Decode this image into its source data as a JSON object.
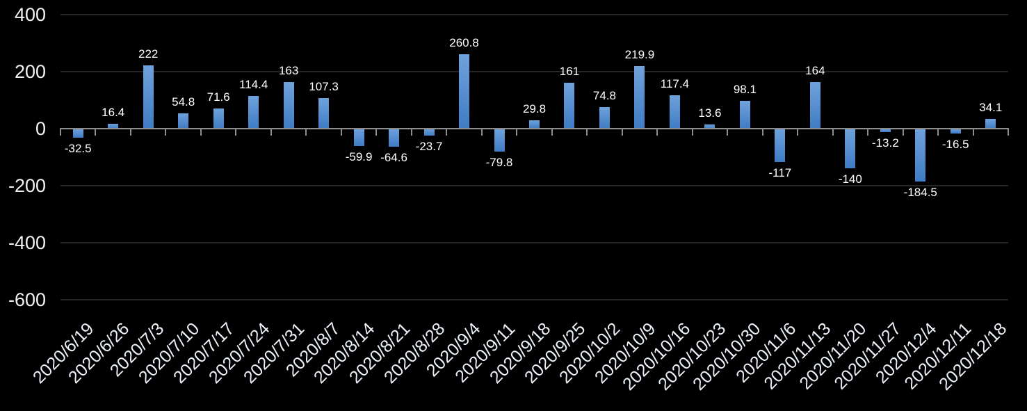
{
  "chart_data": {
    "type": "bar",
    "title": "",
    "xlabel": "",
    "ylabel": "",
    "categories": [
      "2020/6/19",
      "2020/6/26",
      "2020/7/3",
      "2020/7/10",
      "2020/7/17",
      "2020/7/24",
      "2020/7/31",
      "2020/8/7",
      "2020/8/14",
      "2020/8/21",
      "2020/8/28",
      "2020/9/4",
      "2020/9/11",
      "2020/9/18",
      "2020/9/25",
      "2020/10/2",
      "2020/10/9",
      "2020/10/16",
      "2020/10/23",
      "2020/10/30",
      "2020/11/6",
      "2020/11/13",
      "2020/11/20",
      "2020/11/27",
      "2020/12/4",
      "2020/12/11",
      "2020/12/18"
    ],
    "values": [
      -32.5,
      16.4,
      222,
      54.8,
      71.6,
      114.4,
      163,
      107.3,
      -59.9,
      -64.6,
      -23.7,
      260.8,
      -79.8,
      29.8,
      161,
      74.8,
      219.9,
      117.4,
      13.6,
      98.1,
      -117,
      164,
      -140,
      -13.2,
      -184.5,
      -16.5,
      34.1
    ],
    "data_labels": [
      "-32.5",
      "16.4",
      "222",
      "54.8",
      "71.6",
      "114.4",
      "163",
      "107.3",
      "-59.9",
      "-64.6",
      "-23.7",
      "260.8",
      "-79.8",
      "29.8",
      "161",
      "74.8",
      "219.9",
      "117.4",
      "13.6",
      "98.1",
      "-117",
      "164",
      "-140",
      "-13.2",
      "-184.5",
      "-16.5",
      "34.1"
    ],
    "ylim": [
      -600,
      400
    ],
    "yticks": [
      400,
      200,
      0,
      -200,
      -400,
      -600
    ],
    "ytick_labels": [
      "400",
      "200",
      "0",
      "-200",
      "-400",
      "-600"
    ],
    "grid": true,
    "legend": "none",
    "x_tick_rotation_deg": 45,
    "colors": {
      "background": "#000000",
      "bar_gradient_top": "#6FA2DC",
      "bar_gradient_bottom": "#3F7CC4",
      "gridline": "#262626",
      "axis_line": "#8E8E8E",
      "tick": "#8E8E8E",
      "y_label_text": "#F2F2F2",
      "x_label_text": "#EDF2FA",
      "data_label_text": "#FFFFFF"
    }
  }
}
